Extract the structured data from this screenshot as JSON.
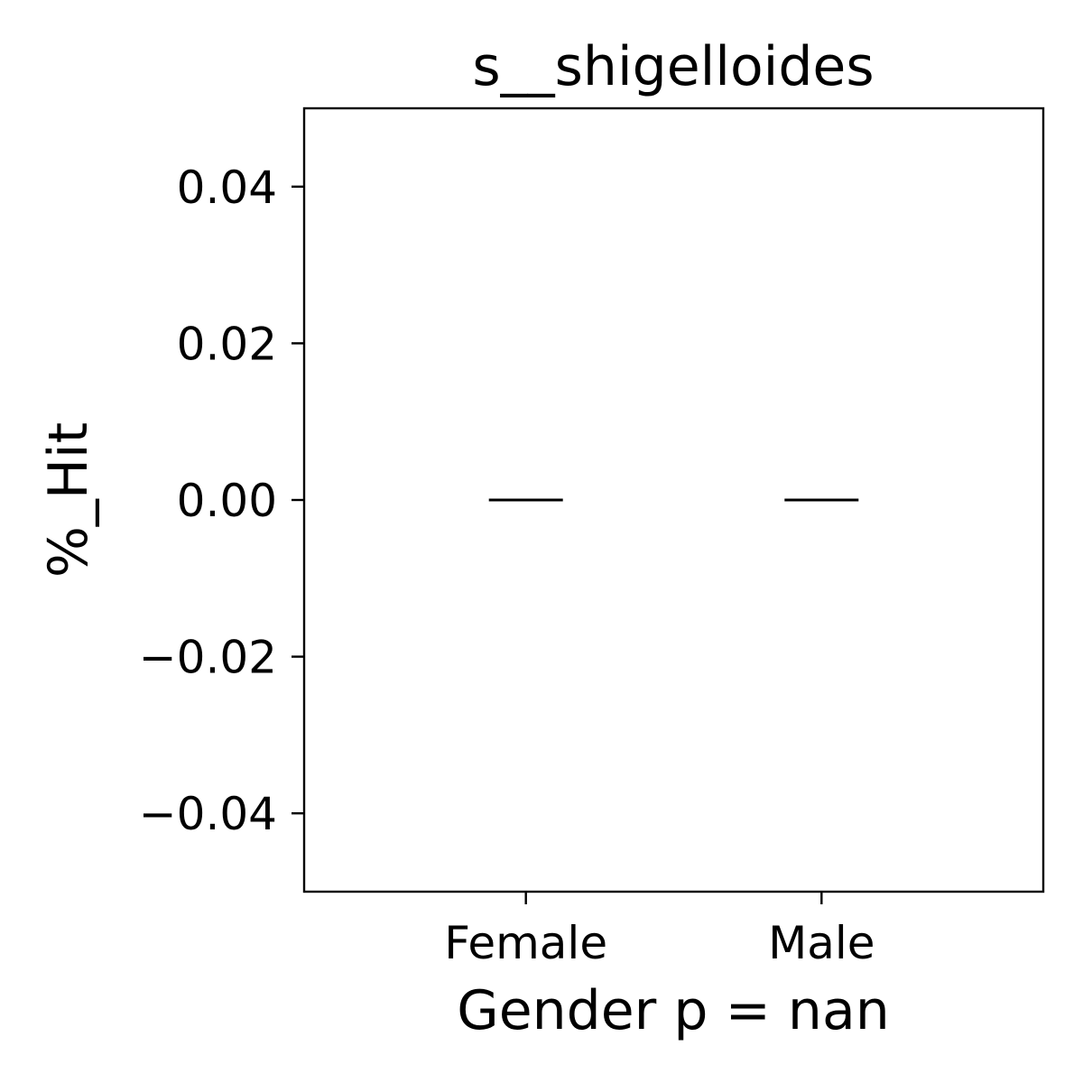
{
  "chart_data": {
    "type": "box",
    "title": "s__shigelloides",
    "xlabel": "Gender p = nan",
    "ylabel": "%_Hit",
    "categories": [
      "Female",
      "Male"
    ],
    "series": [
      {
        "values": [
          {
            "category": "Female",
            "median": 0.0,
            "q1": 0.0,
            "q3": 0.0,
            "whisker_low": 0.0,
            "whisker_high": 0.0
          },
          {
            "category": "Male",
            "median": 0.0,
            "q1": 0.0,
            "q3": 0.0,
            "whisker_low": 0.0,
            "whisker_high": 0.0
          }
        ]
      }
    ],
    "ylim": [
      -0.05,
      0.05
    ],
    "yticks": [
      0.04,
      0.02,
      0.0,
      -0.02,
      -0.04
    ],
    "ytick_labels": [
      "0.04",
      "0.02",
      "0.00",
      "−0.02",
      "−0.04"
    ],
    "grid": false,
    "line_color": "#000000"
  }
}
